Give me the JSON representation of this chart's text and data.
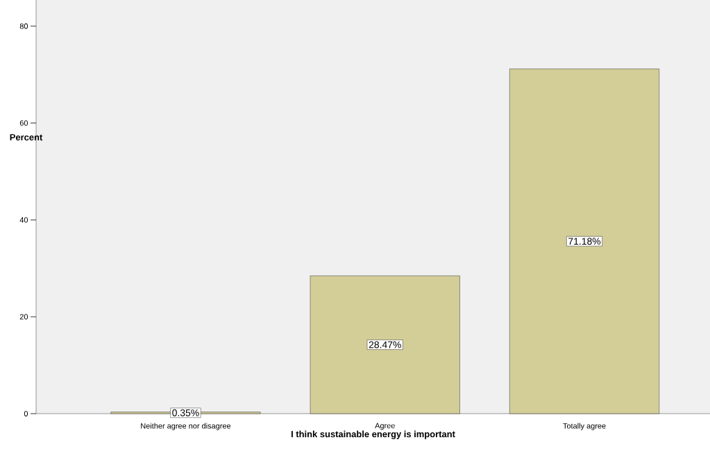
{
  "chart_data": {
    "type": "bar",
    "xlabel": "I think sustainable energy is important",
    "ylabel": "Percent",
    "categories": [
      "Neither agree nor disagree",
      "Agree",
      "Totally agree"
    ],
    "values": [
      0.35,
      28.47,
      71.18
    ],
    "value_labels": [
      "0.35%",
      "28.47%",
      "71.18%"
    ],
    "color": "#d3ce98",
    "ylim": [
      0,
      85.4
    ],
    "yticks": [
      0,
      20,
      40,
      60,
      80
    ]
  }
}
